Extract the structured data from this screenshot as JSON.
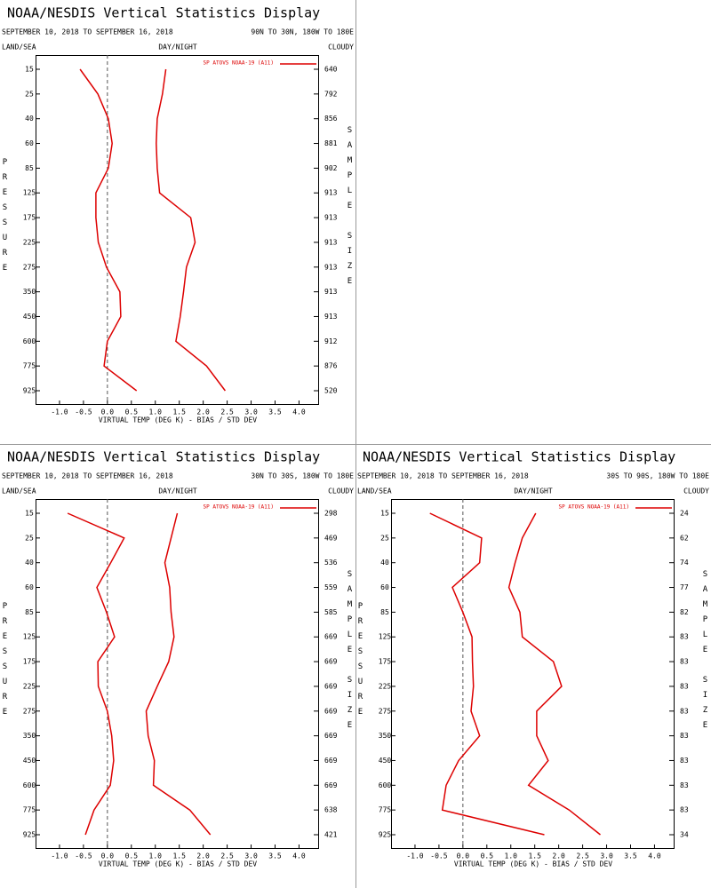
{
  "chart_data": [
    {
      "type": "line",
      "title": "NOAA/NESDIS Vertical Statistics Display",
      "dates": "SEPTEMBER 10, 2018 TO SEPTEMBER 16, 2018",
      "region": "90N TO 30N, 180W TO 180E",
      "land_sea": "LAND/SEA",
      "day_night": "DAY/NIGHT",
      "cloud": "CLOUDY",
      "legend_label": "SP ATOVS NOAA-19 (A11)",
      "y_label": "PRESSURE",
      "y2_label": "SAMPLE SIZE",
      "x_label": "VIRTUAL TEMP (DEG K) - BIAS / STD DEV",
      "categories": [
        15,
        25,
        40,
        60,
        85,
        125,
        175,
        225,
        275,
        350,
        450,
        600,
        775,
        925
      ],
      "sample_size": [
        640,
        792,
        856,
        881,
        902,
        913,
        913,
        913,
        913,
        913,
        913,
        912,
        876,
        520
      ],
      "series": [
        {
          "color": "#dd0000",
          "values": [
            -0.57,
            -0.2,
            0.02,
            0.1,
            0.02,
            -0.24,
            -0.24,
            -0.19,
            -0.02,
            0.26,
            0.28,
            0.0,
            -0.07,
            0.61
          ]
        },
        {
          "color": "#dd0000",
          "values": [
            1.22,
            1.15,
            1.04,
            1.02,
            1.04,
            1.09,
            1.74,
            1.83,
            1.65,
            1.59,
            1.52,
            1.43,
            2.07,
            2.46
          ]
        }
      ],
      "xlim": [
        -1.5,
        4.4
      ],
      "xticks": [
        {
          "value": -1,
          "label": "-1.0"
        },
        -0.5,
        {
          "value": 0,
          "label": "0.0"
        },
        0.5,
        {
          "value": 1,
          "label": "1.0"
        },
        1.5,
        {
          "value": 2,
          "label": "2.0"
        },
        2.5,
        {
          "value": 3,
          "label": "3.0"
        },
        3.5,
        {
          "value": 4,
          "label": "4.0"
        }
      ]
    },
    {
      "type": "line",
      "title": "NOAA/NESDIS Vertical Statistics Display",
      "dates": "SEPTEMBER 10, 2018 TO SEPTEMBER 16, 2018",
      "region": "30N TO 30S, 180W TO 180E",
      "land_sea": "LAND/SEA",
      "day_night": "DAY/NIGHT",
      "cloud": "CLOUDY",
      "legend_label": "SP ATOVS NOAA-19 (A11)",
      "y_label": "PRESSURE",
      "y2_label": "SAMPLE SIZE",
      "x_label": "VIRTUAL TEMP (DEG K) - BIAS / STD DEV",
      "categories": [
        15,
        25,
        40,
        60,
        85,
        125,
        175,
        225,
        275,
        350,
        450,
        600,
        775,
        925
      ],
      "sample_size": [
        298,
        469,
        536,
        559,
        585,
        669,
        669,
        669,
        669,
        669,
        669,
        669,
        638,
        421
      ],
      "series": [
        {
          "color": "#dd0000",
          "values": [
            -0.83,
            0.35,
            0.07,
            -0.22,
            -0.02,
            0.15,
            -0.2,
            -0.19,
            0.0,
            0.09,
            0.13,
            0.06,
            -0.28,
            -0.46
          ]
        },
        {
          "color": "#dd0000",
          "values": [
            1.46,
            1.33,
            1.2,
            1.3,
            1.33,
            1.39,
            1.28,
            1.04,
            0.81,
            0.85,
            0.98,
            0.96,
            1.72,
            2.15
          ]
        }
      ],
      "xlim": [
        -1.5,
        4.4
      ],
      "xticks": [
        {
          "value": -1,
          "label": "-1.0"
        },
        -0.5,
        {
          "value": 0,
          "label": "0.0"
        },
        0.5,
        {
          "value": 1,
          "label": "1.0"
        },
        1.5,
        {
          "value": 2,
          "label": "2.0"
        },
        2.5,
        {
          "value": 3,
          "label": "3.0"
        },
        3.5,
        {
          "value": 4,
          "label": "4.0"
        }
      ]
    },
    {
      "type": "line",
      "title": "NOAA/NESDIS Vertical Statistics Display",
      "dates": "SEPTEMBER 10, 2018 TO SEPTEMBER 16, 2018",
      "region": "30S TO 90S, 180W TO 180E",
      "land_sea": "LAND/SEA",
      "day_night": "DAY/NIGHT",
      "cloud": "CLOUDY",
      "legend_label": "SP ATOVS NOAA-19 (A11)",
      "y_label": "PRESSURE",
      "y2_label": "SAMPLE SIZE",
      "x_label": "VIRTUAL TEMP (DEG K) - BIAS / STD DEV",
      "categories": [
        15,
        25,
        40,
        60,
        85,
        125,
        175,
        225,
        275,
        350,
        450,
        600,
        775,
        925
      ],
      "sample_size": [
        24,
        62,
        74,
        77,
        82,
        83,
        83,
        83,
        83,
        83,
        83,
        83,
        83,
        34
      ],
      "series": [
        {
          "color": "#dd0000",
          "values": [
            -0.69,
            0.39,
            0.35,
            -0.22,
            0.0,
            0.19,
            0.2,
            0.22,
            0.17,
            0.35,
            -0.09,
            -0.35,
            -0.43,
            1.7
          ]
        },
        {
          "color": "#dd0000",
          "values": [
            1.52,
            1.24,
            1.09,
            0.96,
            1.19,
            1.24,
            1.89,
            2.06,
            1.54,
            1.54,
            1.78,
            1.37,
            2.22,
            2.87
          ]
        }
      ],
      "xlim": [
        -1.5,
        4.4
      ],
      "xticks": [
        {
          "value": -1,
          "label": "-1.0"
        },
        -0.5,
        {
          "value": 0,
          "label": "0.0"
        },
        0.5,
        {
          "value": 1,
          "label": "1.0"
        },
        1.5,
        {
          "value": 2,
          "label": "2.0"
        },
        2.5,
        {
          "value": 3,
          "label": "3.0"
        },
        3.5,
        {
          "value": 4,
          "label": "4.0"
        }
      ]
    }
  ]
}
